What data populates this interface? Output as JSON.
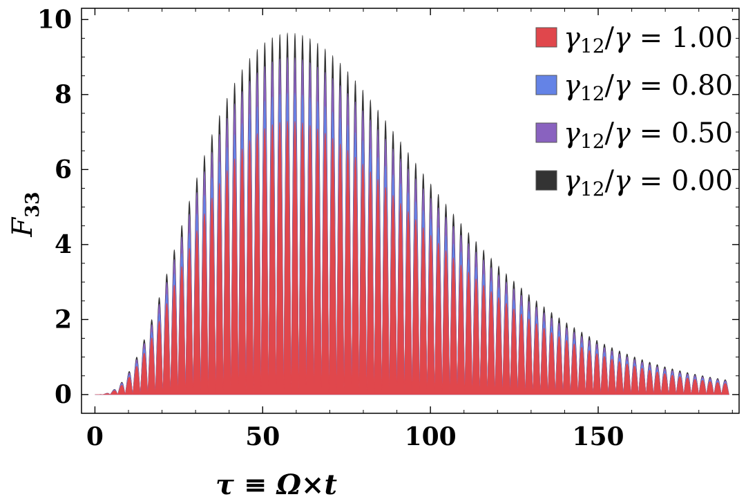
{
  "chart_data": {
    "type": "area",
    "title": "",
    "xlabel": "τ ≡ Ω×t",
    "ylabel": "F33",
    "ylabel_main": "F",
    "ylabel_sub": "33",
    "xlim": [
      -4,
      192
    ],
    "ylim": [
      -0.5,
      10.3
    ],
    "xticks": [
      0,
      50,
      100,
      150
    ],
    "yticks": [
      0,
      2,
      4,
      6,
      8,
      10
    ],
    "x_tick_labels": [
      "0",
      "50",
      "100",
      "150"
    ],
    "y_tick_labels": [
      "0",
      "2",
      "4",
      "6",
      "8",
      "10"
    ],
    "oscillation_period": 2.25,
    "x_end": 189,
    "envelope_peak_x": 58,
    "legend_position": "top-right",
    "series": [
      {
        "name": "γ12/γ = 1.00",
        "legend_value": "1.00",
        "color": "#e0474c",
        "peak": 7.3
      },
      {
        "name": "γ12/γ = 0.80",
        "legend_value": "0.80",
        "color": "#6483e6",
        "peak": 8.05
      },
      {
        "name": "γ12/γ = 0.50",
        "legend_value": "0.50",
        "color": "#8962bf",
        "peak": 9.0
      },
      {
        "name": "γ12/γ = 0.00",
        "legend_value": "0.00",
        "color": "#333333",
        "peak": 9.65
      }
    ]
  }
}
